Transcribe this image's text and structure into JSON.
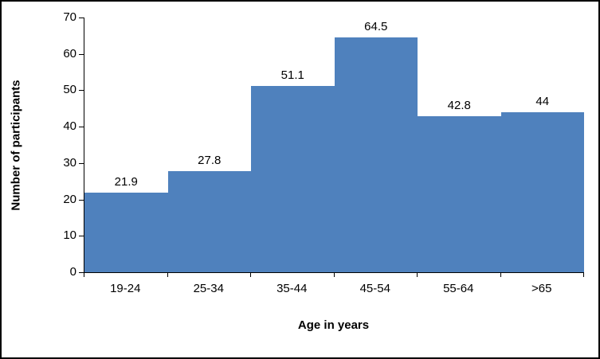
{
  "chart_data": {
    "type": "bar",
    "subtype": "histogram",
    "title": "",
    "categories": [
      "19-24",
      "25-34",
      "35-44",
      "45-54",
      "55-64",
      ">65"
    ],
    "values": [
      21.9,
      27.8,
      51.1,
      64.5,
      42.8,
      44
    ],
    "value_labels": [
      "21.9",
      "27.8",
      "51.1",
      "64.5",
      "42.8",
      "44"
    ],
    "xlabel": "Age in years",
    "ylabel": "Number of participants",
    "ylim": [
      0,
      70
    ],
    "ytick_interval": 10,
    "yticks": [
      0,
      10,
      20,
      30,
      40,
      50,
      60,
      70
    ],
    "grid": false,
    "legend": "none",
    "bar_gap": 0,
    "bar_color": "#4f81bd",
    "axis_color": "#000000",
    "background_color": "#ffffff",
    "border_color": "#000000"
  }
}
